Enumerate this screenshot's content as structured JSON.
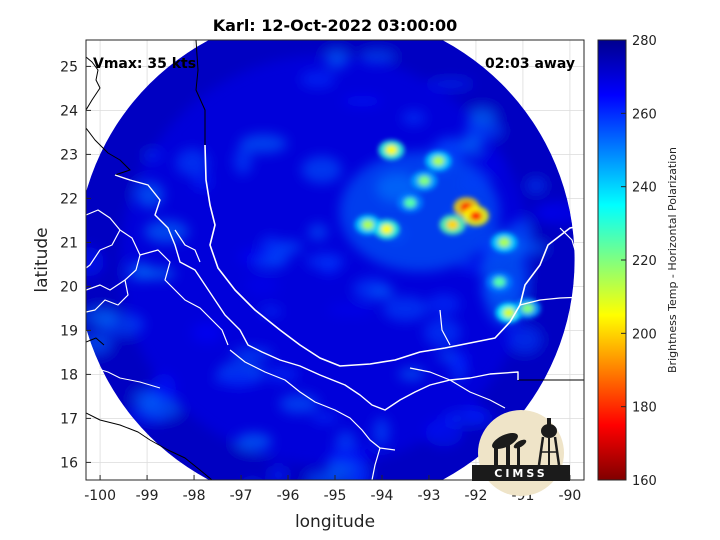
{
  "title": "Karl: 12-Oct-2022 03:00:00",
  "annotations": {
    "vmax": "Vmax: 35 kts",
    "time_away": "02:03 away"
  },
  "axes": {
    "xlabel": "longitude",
    "ylabel": "latitude",
    "xlim": [
      -100.3,
      -89.7
    ],
    "ylim": [
      15.6,
      25.6
    ],
    "xticks": [
      -100,
      -99,
      -98,
      -97,
      -96,
      -95,
      -94,
      -93,
      -92,
      -91,
      -90
    ],
    "yticks": [
      16,
      17,
      18,
      19,
      20,
      21,
      22,
      23,
      24,
      25
    ],
    "grid": true
  },
  "colorbar": {
    "label": "Brightness Temp - Horizontal Polarization",
    "range": [
      160,
      280
    ],
    "ticks": [
      160,
      180,
      200,
      220,
      240,
      260,
      280
    ],
    "colormap": "jet",
    "colors": [
      "#800000",
      "#ff0000",
      "#ff8000",
      "#ffff00",
      "#80ff80",
      "#00ffff",
      "#0080ff",
      "#0000ff",
      "#00008f"
    ]
  },
  "swath": {
    "center": [
      -95.2,
      20.6
    ],
    "radius_deg": 5.3,
    "background_temp": 270
  },
  "chart_data": {
    "type": "heatmap",
    "title": "Karl: 12-Oct-2022 03:00:00",
    "xlabel": "longitude",
    "ylabel": "latitude",
    "xlim": [
      -100.3,
      -89.7
    ],
    "ylim": [
      15.6,
      25.6
    ],
    "value_range": [
      160,
      280
    ],
    "cold_cells": [
      {
        "lon": -93.8,
        "lat": 23.1,
        "temp": 205
      },
      {
        "lon": -92.8,
        "lat": 22.85,
        "temp": 215
      },
      {
        "lon": -92.2,
        "lat": 21.8,
        "temp": 175
      },
      {
        "lon": -92.0,
        "lat": 21.6,
        "temp": 180
      },
      {
        "lon": -92.5,
        "lat": 21.4,
        "temp": 200
      },
      {
        "lon": -93.9,
        "lat": 21.3,
        "temp": 205
      },
      {
        "lon": -94.3,
        "lat": 21.4,
        "temp": 215
      },
      {
        "lon": -91.4,
        "lat": 21.0,
        "temp": 215
      },
      {
        "lon": -91.5,
        "lat": 20.1,
        "temp": 225
      },
      {
        "lon": -91.3,
        "lat": 19.4,
        "temp": 210
      },
      {
        "lon": -90.9,
        "lat": 19.5,
        "temp": 220
      },
      {
        "lon": -93.1,
        "lat": 22.4,
        "temp": 220
      },
      {
        "lon": -93.4,
        "lat": 21.9,
        "temp": 225
      }
    ]
  },
  "logo": {
    "text": "CIMSS"
  }
}
